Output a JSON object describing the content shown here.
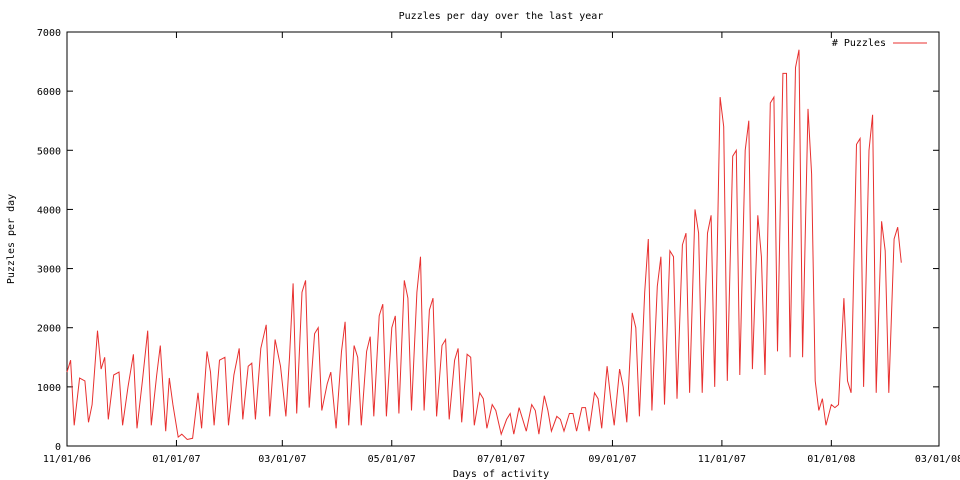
{
  "chart_data": {
    "type": "line",
    "title": "Puzzles per day over the last year",
    "xlabel": "Days of activity",
    "ylabel": "Puzzles per day",
    "xlim": [
      "2006-11-01",
      "2008-03-01"
    ],
    "ylim": [
      0,
      7000
    ],
    "x_ticks": [
      "11/01/06",
      "01/01/07",
      "03/01/07",
      "05/01/07",
      "07/01/07",
      "09/01/07",
      "11/01/07",
      "01/01/08",
      "03/01/08"
    ],
    "y_ticks": [
      "0",
      "1000",
      "2000",
      "3000",
      "4000",
      "5000",
      "6000",
      "7000"
    ],
    "legend_position": "top-right",
    "grid": false,
    "series": [
      {
        "name": "# Puzzles",
        "color": "#e8302f",
        "points": [
          [
            "2006-11-01",
            1250
          ],
          [
            "2006-11-03",
            1450
          ],
          [
            "2006-11-05",
            350
          ],
          [
            "2006-11-08",
            1150
          ],
          [
            "2006-11-11",
            1100
          ],
          [
            "2006-11-13",
            400
          ],
          [
            "2006-11-15",
            700
          ],
          [
            "2006-11-18",
            1950
          ],
          [
            "2006-11-20",
            1300
          ],
          [
            "2006-11-22",
            1500
          ],
          [
            "2006-11-24",
            450
          ],
          [
            "2006-11-27",
            1200
          ],
          [
            "2006-11-30",
            1250
          ],
          [
            "2006-12-02",
            350
          ],
          [
            "2006-12-05",
            1000
          ],
          [
            "2006-12-08",
            1550
          ],
          [
            "2006-12-10",
            300
          ],
          [
            "2006-12-13",
            1100
          ],
          [
            "2006-12-16",
            1950
          ],
          [
            "2006-12-18",
            350
          ],
          [
            "2006-12-21",
            1200
          ],
          [
            "2006-12-23",
            1700
          ],
          [
            "2006-12-26",
            250
          ],
          [
            "2006-12-28",
            1150
          ],
          [
            "2006-12-30",
            700
          ],
          [
            "2007-01-02",
            150
          ],
          [
            "2007-01-04",
            200
          ],
          [
            "2007-01-07",
            110
          ],
          [
            "2007-01-10",
            130
          ],
          [
            "2007-01-13",
            900
          ],
          [
            "2007-01-15",
            300
          ],
          [
            "2007-01-18",
            1600
          ],
          [
            "2007-01-20",
            1250
          ],
          [
            "2007-01-22",
            350
          ],
          [
            "2007-01-25",
            1450
          ],
          [
            "2007-01-28",
            1500
          ],
          [
            "2007-01-30",
            350
          ],
          [
            "2007-02-02",
            1200
          ],
          [
            "2007-02-05",
            1650
          ],
          [
            "2007-02-07",
            450
          ],
          [
            "2007-02-10",
            1350
          ],
          [
            "2007-02-12",
            1400
          ],
          [
            "2007-02-14",
            450
          ],
          [
            "2007-02-17",
            1650
          ],
          [
            "2007-02-20",
            2050
          ],
          [
            "2007-02-22",
            500
          ],
          [
            "2007-02-25",
            1800
          ],
          [
            "2007-02-28",
            1350
          ],
          [
            "2007-03-03",
            500
          ],
          [
            "2007-03-05",
            1500
          ],
          [
            "2007-03-07",
            2750
          ],
          [
            "2007-03-09",
            550
          ],
          [
            "2007-03-12",
            2600
          ],
          [
            "2007-03-14",
            2800
          ],
          [
            "2007-03-16",
            650
          ],
          [
            "2007-03-19",
            1900
          ],
          [
            "2007-03-21",
            2000
          ],
          [
            "2007-03-23",
            600
          ],
          [
            "2007-03-26",
            1050
          ],
          [
            "2007-03-28",
            1250
          ],
          [
            "2007-03-31",
            300
          ],
          [
            "2007-04-03",
            1600
          ],
          [
            "2007-04-05",
            2100
          ],
          [
            "2007-04-07",
            350
          ],
          [
            "2007-04-10",
            1700
          ],
          [
            "2007-04-12",
            1500
          ],
          [
            "2007-04-14",
            350
          ],
          [
            "2007-04-17",
            1600
          ],
          [
            "2007-04-19",
            1850
          ],
          [
            "2007-04-21",
            500
          ],
          [
            "2007-04-24",
            2200
          ],
          [
            "2007-04-26",
            2400
          ],
          [
            "2007-04-28",
            500
          ],
          [
            "2007-05-01",
            2000
          ],
          [
            "2007-05-03",
            2200
          ],
          [
            "2007-05-05",
            550
          ],
          [
            "2007-05-08",
            2800
          ],
          [
            "2007-05-10",
            2500
          ],
          [
            "2007-05-12",
            600
          ],
          [
            "2007-05-15",
            2600
          ],
          [
            "2007-05-17",
            3200
          ],
          [
            "2007-05-19",
            600
          ],
          [
            "2007-05-22",
            2300
          ],
          [
            "2007-05-24",
            2500
          ],
          [
            "2007-05-26",
            500
          ],
          [
            "2007-05-29",
            1700
          ],
          [
            "2007-05-31",
            1800
          ],
          [
            "2007-06-02",
            450
          ],
          [
            "2007-06-05",
            1450
          ],
          [
            "2007-06-07",
            1650
          ],
          [
            "2007-06-09",
            400
          ],
          [
            "2007-06-12",
            1550
          ],
          [
            "2007-06-14",
            1500
          ],
          [
            "2007-06-16",
            350
          ],
          [
            "2007-06-19",
            900
          ],
          [
            "2007-06-21",
            800
          ],
          [
            "2007-06-23",
            300
          ],
          [
            "2007-06-26",
            700
          ],
          [
            "2007-06-28",
            600
          ],
          [
            "2007-07-01",
            200
          ],
          [
            "2007-07-04",
            450
          ],
          [
            "2007-07-06",
            550
          ],
          [
            "2007-07-08",
            200
          ],
          [
            "2007-07-11",
            650
          ],
          [
            "2007-07-13",
            450
          ],
          [
            "2007-07-15",
            250
          ],
          [
            "2007-07-18",
            700
          ],
          [
            "2007-07-20",
            600
          ],
          [
            "2007-07-22",
            200
          ],
          [
            "2007-07-25",
            850
          ],
          [
            "2007-07-27",
            600
          ],
          [
            "2007-07-29",
            250
          ],
          [
            "2007-08-01",
            500
          ],
          [
            "2007-08-03",
            450
          ],
          [
            "2007-08-05",
            250
          ],
          [
            "2007-08-08",
            550
          ],
          [
            "2007-08-10",
            550
          ],
          [
            "2007-08-12",
            250
          ],
          [
            "2007-08-15",
            650
          ],
          [
            "2007-08-17",
            650
          ],
          [
            "2007-08-19",
            250
          ],
          [
            "2007-08-22",
            900
          ],
          [
            "2007-08-24",
            800
          ],
          [
            "2007-08-26",
            300
          ],
          [
            "2007-08-29",
            1350
          ],
          [
            "2007-08-31",
            800
          ],
          [
            "2007-09-02",
            350
          ],
          [
            "2007-09-05",
            1300
          ],
          [
            "2007-09-07",
            1000
          ],
          [
            "2007-09-09",
            400
          ],
          [
            "2007-09-12",
            2250
          ],
          [
            "2007-09-14",
            2000
          ],
          [
            "2007-09-16",
            500
          ],
          [
            "2007-09-19",
            2600
          ],
          [
            "2007-09-21",
            3500
          ],
          [
            "2007-09-23",
            600
          ],
          [
            "2007-09-26",
            2700
          ],
          [
            "2007-09-28",
            3200
          ],
          [
            "2007-09-30",
            700
          ],
          [
            "2007-10-03",
            3300
          ],
          [
            "2007-10-05",
            3200
          ],
          [
            "2007-10-07",
            800
          ],
          [
            "2007-10-10",
            3400
          ],
          [
            "2007-10-12",
            3600
          ],
          [
            "2007-10-14",
            900
          ],
          [
            "2007-10-17",
            4000
          ],
          [
            "2007-10-19",
            3600
          ],
          [
            "2007-10-21",
            900
          ],
          [
            "2007-10-24",
            3600
          ],
          [
            "2007-10-26",
            3900
          ],
          [
            "2007-10-28",
            1000
          ],
          [
            "2007-10-31",
            5900
          ],
          [
            "2007-11-02",
            5400
          ],
          [
            "2007-11-04",
            1100
          ],
          [
            "2007-11-07",
            4900
          ],
          [
            "2007-11-09",
            5000
          ],
          [
            "2007-11-11",
            1200
          ],
          [
            "2007-11-14",
            5000
          ],
          [
            "2007-11-16",
            5500
          ],
          [
            "2007-11-18",
            1300
          ],
          [
            "2007-11-21",
            3900
          ],
          [
            "2007-11-23",
            3200
          ],
          [
            "2007-11-25",
            1200
          ],
          [
            "2007-11-28",
            5800
          ],
          [
            "2007-11-30",
            5900
          ],
          [
            "2007-12-02",
            1600
          ],
          [
            "2007-12-05",
            6300
          ],
          [
            "2007-12-07",
            6300
          ],
          [
            "2007-12-09",
            1500
          ],
          [
            "2007-12-12",
            6400
          ],
          [
            "2007-12-14",
            6700
          ],
          [
            "2007-12-16",
            1500
          ],
          [
            "2007-12-19",
            5700
          ],
          [
            "2007-12-21",
            4600
          ],
          [
            "2007-12-23",
            1100
          ],
          [
            "2007-12-25",
            600
          ],
          [
            "2007-12-27",
            800
          ],
          [
            "2007-12-29",
            350
          ],
          [
            "2008-01-01",
            700
          ],
          [
            "2008-01-03",
            650
          ],
          [
            "2008-01-05",
            700
          ],
          [
            "2008-01-08",
            2500
          ],
          [
            "2008-01-10",
            1100
          ],
          [
            "2008-01-12",
            900
          ],
          [
            "2008-01-15",
            5100
          ],
          [
            "2008-01-17",
            5200
          ],
          [
            "2008-01-19",
            1000
          ],
          [
            "2008-01-22",
            5000
          ],
          [
            "2008-01-24",
            5600
          ],
          [
            "2008-01-26",
            900
          ],
          [
            "2008-01-29",
            3800
          ],
          [
            "2008-01-31",
            3300
          ],
          [
            "2008-02-02",
            900
          ],
          [
            "2008-02-05",
            3500
          ],
          [
            "2008-02-07",
            3700
          ],
          [
            "2008-02-09",
            3100
          ]
        ]
      }
    ]
  }
}
